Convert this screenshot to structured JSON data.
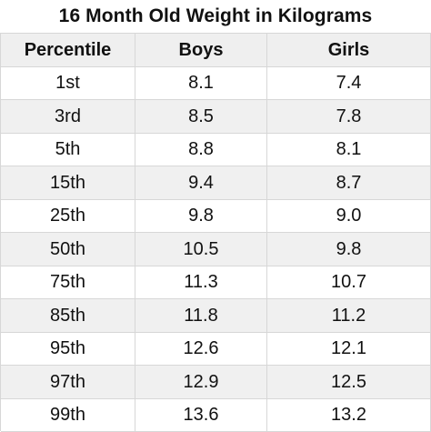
{
  "chart_data": {
    "type": "table",
    "title": "16 Month Old Weight in Kilograms",
    "columns": [
      "Percentile",
      "Boys",
      "Girls"
    ],
    "rows": [
      [
        "1st",
        "8.1",
        "7.4"
      ],
      [
        "3rd",
        "8.5",
        "7.8"
      ],
      [
        "5th",
        "8.8",
        "8.1"
      ],
      [
        "15th",
        "9.4",
        "8.7"
      ],
      [
        "25th",
        "9.8",
        "9.0"
      ],
      [
        "50th",
        "10.5",
        "9.8"
      ],
      [
        "75th",
        "11.3",
        "10.7"
      ],
      [
        "85th",
        "11.8",
        "11.2"
      ],
      [
        "95th",
        "12.6",
        "12.1"
      ],
      [
        "97th",
        "12.9",
        "12.5"
      ],
      [
        "99th",
        "13.6",
        "13.2"
      ]
    ]
  }
}
